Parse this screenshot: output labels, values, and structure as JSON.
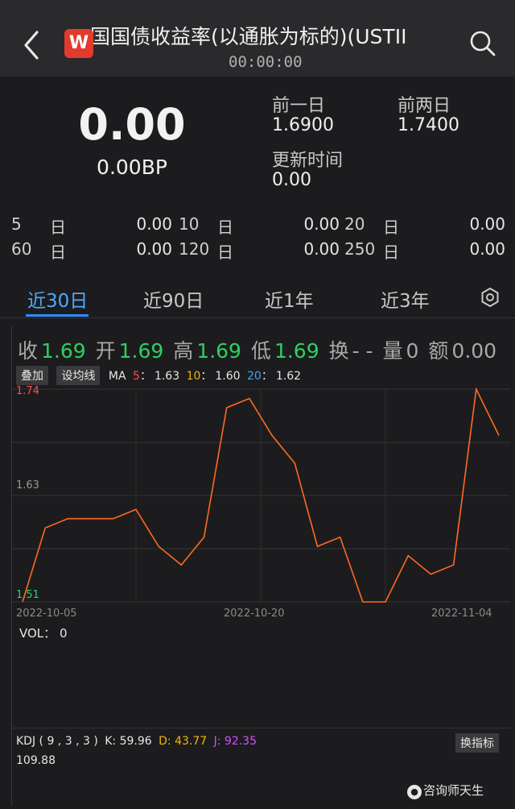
{
  "header": {
    "logo_letter": "W",
    "title": "国国债收益率(以通胀为标的)(USTII",
    "time": "00:00:00"
  },
  "quote": {
    "price": "0.00",
    "change": "0.00BP",
    "prev_day_label": "前一日",
    "prev_day_value": "1.6900",
    "prev2_day_label": "前两日",
    "prev2_day_value": "1.7400",
    "update_label": "更新时间",
    "update_value": "0.00"
  },
  "periods": [
    {
      "num": "5",
      "unit": "日",
      "value": "0.00"
    },
    {
      "num": "10",
      "unit": "日",
      "value": "0.00"
    },
    {
      "num": "20",
      "unit": "日",
      "value": "0.00"
    },
    {
      "num": "60",
      "unit": "日",
      "value": "0.00"
    },
    {
      "num": "120",
      "unit": "日",
      "value": "0.00"
    },
    {
      "num": "250",
      "unit": "日",
      "value": "0.00"
    }
  ],
  "tabs": [
    "近30日",
    "近90日",
    "近1年",
    "近3年"
  ],
  "active_tab": 0,
  "ohlc": {
    "close_label": "收",
    "close": "1.69",
    "open_label": "开",
    "open": "1.69",
    "high_label": "高",
    "high": "1.69",
    "low_label": "低",
    "low": "1.69",
    "turnover_label": "换",
    "turnover": "- -",
    "volume_label": "量",
    "volume": "0",
    "amount_label": "额",
    "amount": "0.00"
  },
  "ma": {
    "overlay_label": "叠加",
    "set_ma_label": "设均线",
    "ma_label": "MA",
    "ma5_key": "5",
    "ma5_sep": "：",
    "ma5_val": "1.63",
    "ma10_key": "10",
    "ma10_sep": "：",
    "ma10_val": "1.60",
    "ma20_key": "20",
    "ma20_sep": "：",
    "ma20_val": "1.62"
  },
  "colors": {
    "green": "#2ecf62",
    "line": "#ff6a21",
    "ma5": "#ff4d4d",
    "ma10": "#f5b400",
    "ma20": "#3aa6ff",
    "kdj_k": "#e6e6e6",
    "kdj_d": "#f5b400",
    "kdj_j": "#d24dff"
  },
  "chart_data": {
    "type": "line",
    "ylim": [
      1.51,
      1.74
    ],
    "y_tick_labels": [
      "1.74",
      "1.63",
      "1.51"
    ],
    "x_tick_labels": [
      "2022-10-05",
      "2022-10-20",
      "2022-11-04"
    ],
    "series": [
      {
        "values": [
          1.51,
          1.59,
          1.6,
          1.6,
          1.6,
          1.61,
          1.57,
          1.55,
          1.58,
          1.72,
          1.73,
          1.69,
          1.66,
          1.57,
          1.58,
          1.49,
          1.49,
          1.56,
          1.54,
          1.55,
          1.75,
          1.69
        ]
      }
    ],
    "grid": true
  },
  "vol": {
    "label": "VOL：",
    "value": "0"
  },
  "kdj": {
    "label": "KDJ ( 9 , 3 , 3 )",
    "k_label": "K: 59.96",
    "d_label": "D: 43.77",
    "j_label": "J: 92.35",
    "top_value": "109.88",
    "switch_label": "换指标"
  },
  "watermark": "咨询师天生"
}
